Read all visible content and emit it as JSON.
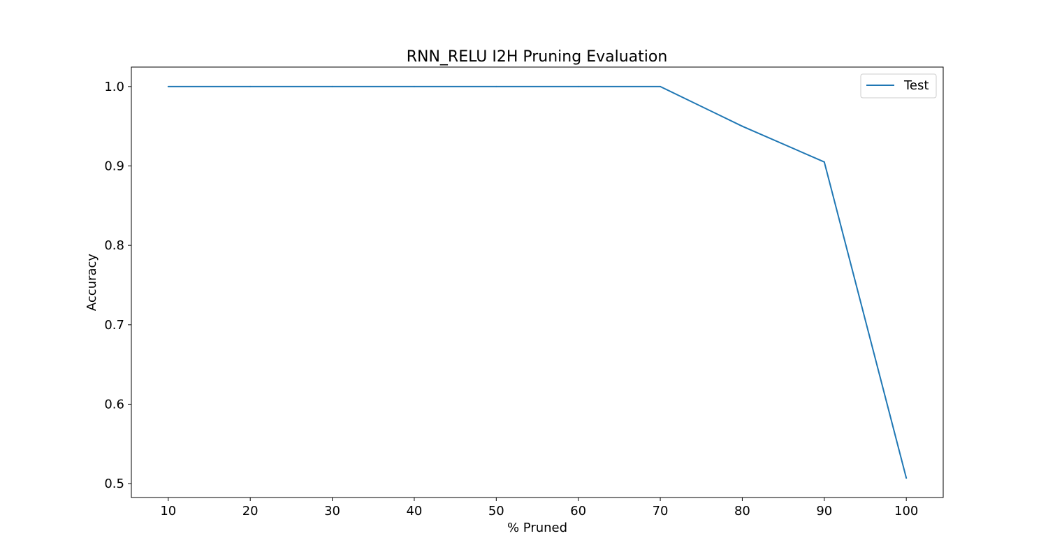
{
  "chart_data": {
    "type": "line",
    "title": "RNN_RELU I2H Pruning Evaluation",
    "xlabel": "% Pruned",
    "ylabel": "Accuracy",
    "x": [
      10,
      20,
      30,
      40,
      50,
      60,
      70,
      80,
      90,
      100
    ],
    "series": [
      {
        "name": "Test",
        "color": "#1f77b4",
        "values": [
          1.0,
          1.0,
          1.0,
          1.0,
          1.0,
          1.0,
          1.0,
          0.95,
          0.905,
          0.507
        ]
      }
    ],
    "xlim": [
      5.5,
      104.5
    ],
    "ylim": [
      0.4825,
      1.0245
    ],
    "xticks": [
      "10",
      "20",
      "30",
      "40",
      "50",
      "60",
      "70",
      "80",
      "90",
      "100"
    ],
    "yticks": [
      "0.5",
      "0.6",
      "0.7",
      "0.8",
      "0.9",
      "1.0"
    ],
    "grid": false,
    "legend": "top-right"
  }
}
